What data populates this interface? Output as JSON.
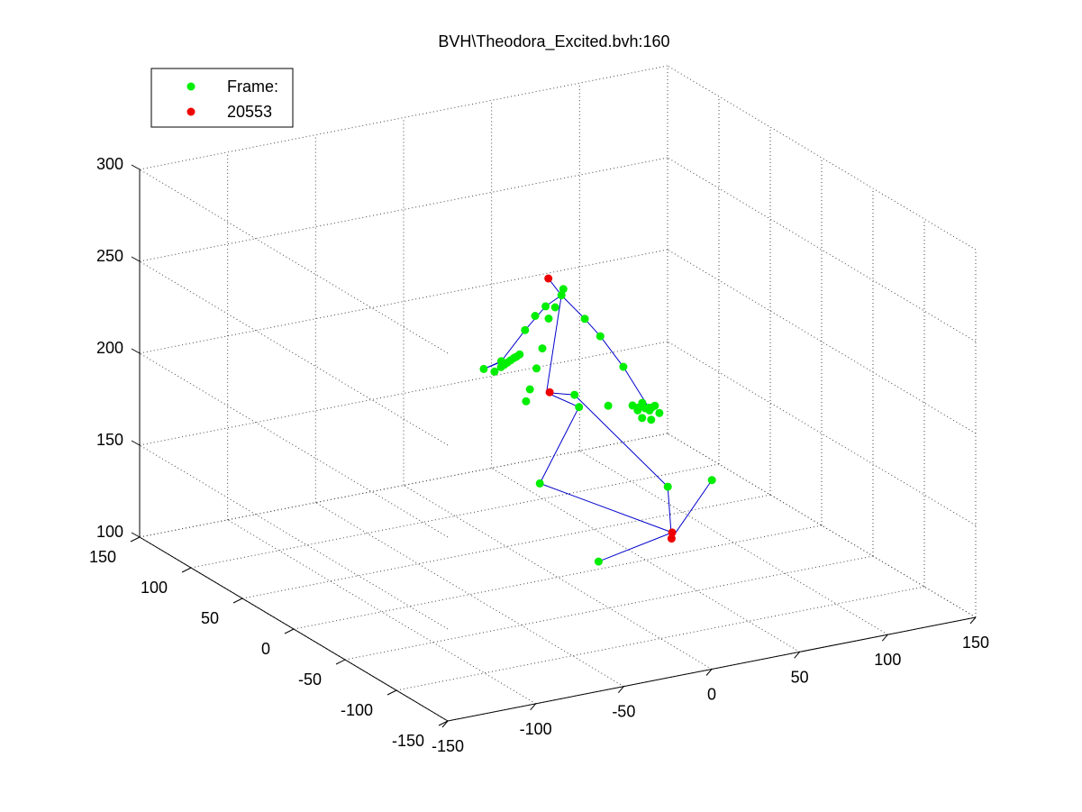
{
  "chart_data": {
    "type": "scatter",
    "projection": "3d",
    "title": "BVH\\Theodora_Excited.bvh:160",
    "xlabel": "",
    "ylabel": "",
    "zlabel": "",
    "xlim": [
      -150,
      150
    ],
    "ylim": [
      -150,
      150
    ],
    "zlim": [
      100,
      300
    ],
    "x_ticks": [
      "-150",
      "-100",
      "-50",
      "0",
      "50",
      "100",
      "150"
    ],
    "y_ticks": [
      "-150",
      "-100",
      "-50",
      "0",
      "50",
      "100",
      "150"
    ],
    "z_ticks": [
      "100",
      "150",
      "200",
      "250",
      "300"
    ],
    "grid": true,
    "legend": {
      "placement": "top-left",
      "entries": [
        "Frame:",
        "20553"
      ]
    },
    "colors": {
      "joint": "#00ee00",
      "end_site": "#ee0000",
      "bone": "#0000cc",
      "grid": "#444444"
    },
    "series": [
      {
        "name": "Frame:",
        "marker_color": "#00ee00",
        "points": [
          [
            68,
            111,
            207
          ],
          [
            64,
            106,
            206
          ],
          [
            54,
            95,
            205
          ],
          [
            48,
            94,
            207
          ],
          [
            38,
            87,
            206
          ],
          [
            34,
            90,
            198
          ],
          [
            24,
            96,
            181
          ],
          [
            28,
            120,
            168
          ],
          [
            40,
            130,
            161
          ],
          [
            46,
            134,
            161
          ],
          [
            49,
            136,
            161
          ],
          [
            52,
            138,
            161
          ],
          [
            55,
            140,
            161
          ],
          [
            58,
            142,
            161
          ],
          [
            60,
            143,
            161
          ],
          [
            63,
            145,
            161
          ],
          [
            55,
            103,
            196
          ],
          [
            52,
            104,
            180
          ],
          [
            51,
            108,
            168
          ],
          [
            49,
            111,
            156
          ],
          [
            48,
            113,
            149
          ],
          [
            65,
            85,
            200
          ],
          [
            75,
            87,
            188
          ],
          [
            84,
            80,
            172
          ],
          [
            92,
            63,
            155
          ],
          [
            88,
            62,
            155
          ],
          [
            86,
            65,
            157
          ],
          [
            85,
            67,
            154
          ],
          [
            89,
            63,
            153
          ],
          [
            92,
            66,
            153
          ],
          [
            84,
            66,
            153
          ],
          [
            90,
            69,
            152
          ],
          [
            94,
            62,
            151
          ],
          [
            83,
            60,
            151
          ],
          [
            87,
            58,
            150
          ],
          [
            84,
            71,
            154
          ],
          [
            76,
            81,
            152
          ],
          [
            72,
            107,
            150
          ],
          [
            57,
            115,
            102
          ],
          [
            104,
            71,
            106
          ],
          [
            125,
            64,
            108
          ],
          [
            88,
            111,
            55
          ],
          [
            81,
            118,
            138
          ]
        ]
      },
      {
        "name": "20553",
        "marker_color": "#ee0000",
        "points": [
          [
            56,
            105,
            217
          ],
          [
            62,
            114,
            151
          ],
          [
            112,
            81,
            73
          ],
          [
            110,
            77,
            78
          ]
        ]
      }
    ],
    "bones": [
      [
        [
          59,
          112,
          152
        ],
        [
          64,
          106,
          206
        ]
      ],
      [
        [
          64,
          106,
          206
        ],
        [
          56,
          105,
          217
        ]
      ],
      [
        [
          64,
          106,
          206
        ],
        [
          48,
          94,
          207
        ]
      ],
      [
        [
          48,
          94,
          207
        ],
        [
          34,
          90,
          198
        ]
      ],
      [
        [
          34,
          90,
          198
        ],
        [
          24,
          96,
          181
        ]
      ],
      [
        [
          24,
          96,
          181
        ],
        [
          28,
          120,
          168
        ]
      ],
      [
        [
          28,
          120,
          168
        ],
        [
          63,
          145,
          161
        ]
      ],
      [
        [
          64,
          106,
          206
        ],
        [
          65,
          85,
          200
        ]
      ],
      [
        [
          65,
          85,
          200
        ],
        [
          75,
          87,
          188
        ]
      ],
      [
        [
          75,
          87,
          188
        ],
        [
          84,
          80,
          172
        ]
      ],
      [
        [
          84,
          80,
          172
        ],
        [
          88,
          62,
          155
        ]
      ],
      [
        [
          59,
          112,
          152
        ],
        [
          72,
          107,
          150
        ]
      ],
      [
        [
          72,
          107,
          150
        ],
        [
          104,
          71,
          106
        ]
      ],
      [
        [
          104,
          71,
          106
        ],
        [
          112,
          81,
          73
        ]
      ],
      [
        [
          112,
          81,
          73
        ],
        [
          125,
          64,
          108
        ]
      ],
      [
        [
          59,
          112,
          152
        ],
        [
          81,
          118,
          138
        ]
      ],
      [
        [
          81,
          118,
          138
        ],
        [
          57,
          115,
          102
        ]
      ],
      [
        [
          57,
          115,
          102
        ],
        [
          110,
          77,
          78
        ]
      ],
      [
        [
          110,
          77,
          78
        ],
        [
          88,
          111,
          55
        ]
      ]
    ]
  }
}
